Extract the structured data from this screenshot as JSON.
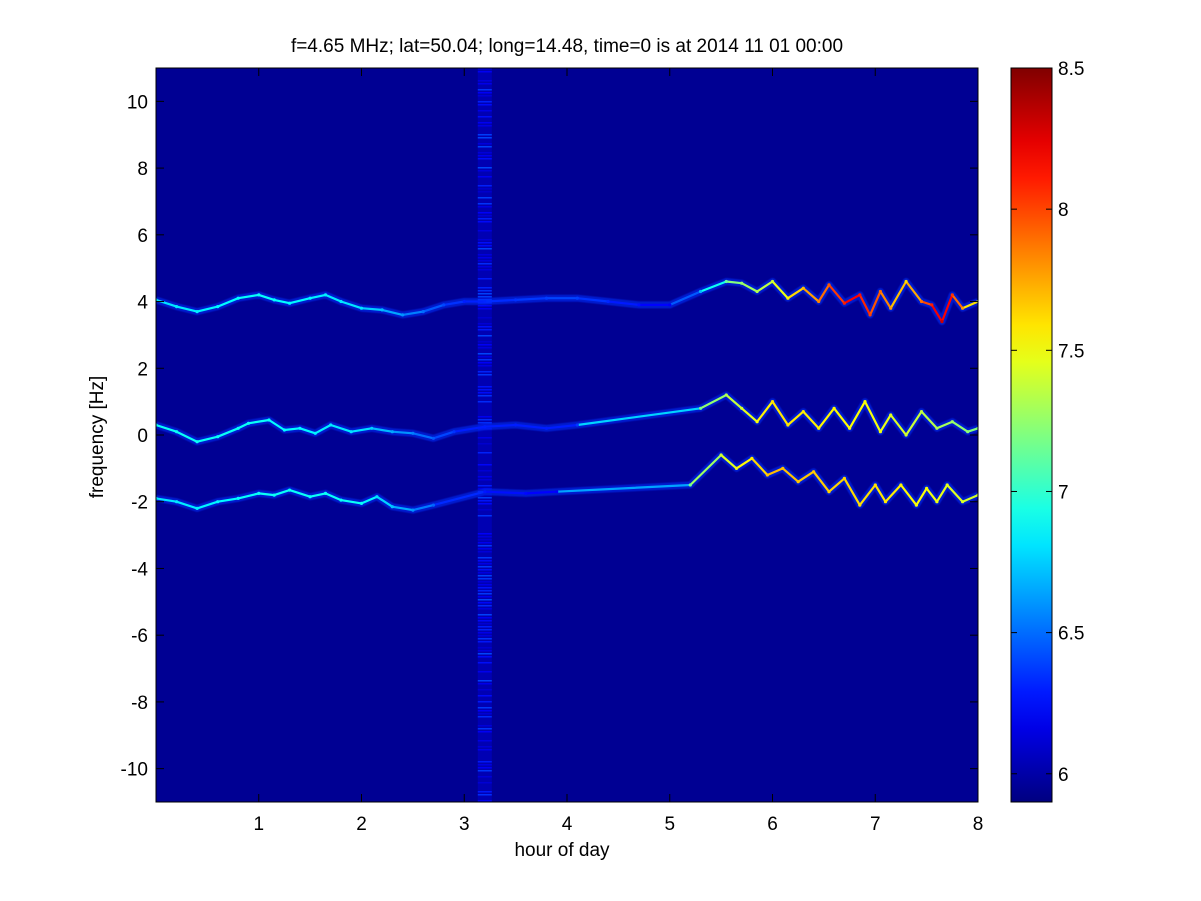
{
  "chart_data": {
    "type": "heatmap",
    "title": "f=4.65 MHz;  lat=50.04; long=14.48, time=0 is at 2014 11 01 00:00",
    "xlabel": "hour of day",
    "ylabel": "frequency [Hz]",
    "xlim": [
      0,
      8
    ],
    "ylim": [
      -11,
      11
    ],
    "x_ticks": [
      1,
      2,
      3,
      4,
      5,
      6,
      7,
      8
    ],
    "y_ticks": [
      -10,
      -8,
      -6,
      -4,
      -2,
      0,
      2,
      4,
      6,
      8,
      10
    ],
    "x_tick_labels": [
      "1",
      "2",
      "3",
      "4",
      "5",
      "6",
      "7",
      "8"
    ],
    "y_tick_labels": [
      "-10",
      "-8",
      "-6",
      "-4",
      "-2",
      "0",
      "2",
      "4",
      "6",
      "8",
      "10"
    ],
    "colorbar": {
      "min": 5.9,
      "max": 8.5,
      "ticks": [
        6,
        6.5,
        7,
        7.5,
        8,
        8.5
      ],
      "tick_labels": [
        "6",
        "6.5",
        "7",
        "7.5",
        "8",
        "8.5"
      ],
      "colormap": "jet"
    },
    "background_level": 5.95,
    "grid": false,
    "traces": [
      {
        "name": "",
        "points": [
          [
            0.0,
            4.05
          ],
          [
            0.2,
            3.85
          ],
          [
            0.4,
            3.7
          ],
          [
            0.6,
            3.85
          ],
          [
            0.8,
            4.1
          ],
          [
            1.0,
            4.2
          ],
          [
            1.15,
            4.05
          ],
          [
            1.3,
            3.95
          ],
          [
            1.5,
            4.1
          ],
          [
            1.65,
            4.2
          ],
          [
            1.8,
            4.0
          ],
          [
            2.0,
            3.8
          ],
          [
            2.2,
            3.75
          ],
          [
            2.4,
            3.6
          ],
          [
            2.6,
            3.7
          ],
          [
            2.8,
            3.9
          ],
          [
            3.0,
            4.0
          ],
          [
            3.2,
            4.0
          ],
          [
            3.5,
            4.05
          ],
          [
            3.8,
            4.1
          ],
          [
            4.1,
            4.1
          ],
          [
            4.4,
            4.0
          ],
          [
            4.7,
            3.9
          ],
          [
            5.0,
            3.9
          ],
          [
            5.3,
            4.3
          ],
          [
            5.55,
            4.6
          ],
          [
            5.7,
            4.55
          ],
          [
            5.85,
            4.3
          ],
          [
            6.0,
            4.6
          ],
          [
            6.15,
            4.1
          ],
          [
            6.3,
            4.4
          ],
          [
            6.45,
            4.0
          ],
          [
            6.55,
            4.5
          ],
          [
            6.7,
            3.95
          ],
          [
            6.85,
            4.2
          ],
          [
            6.95,
            3.6
          ],
          [
            7.05,
            4.3
          ],
          [
            7.15,
            3.8
          ],
          [
            7.3,
            4.6
          ],
          [
            7.45,
            4.0
          ],
          [
            7.55,
            3.9
          ],
          [
            7.65,
            3.4
          ],
          [
            7.75,
            4.2
          ],
          [
            7.85,
            3.8
          ],
          [
            8.0,
            4.0
          ]
        ],
        "levels": [
          [
            0.0,
            6.8
          ],
          [
            1.0,
            6.9
          ],
          [
            2.0,
            6.8
          ],
          [
            3.0,
            6.3
          ],
          [
            4.0,
            6.4
          ],
          [
            5.0,
            6.2
          ],
          [
            5.6,
            7.2
          ],
          [
            6.0,
            7.4
          ],
          [
            6.8,
            8.2
          ],
          [
            7.3,
            7.6
          ],
          [
            7.65,
            8.3
          ],
          [
            8.0,
            7.4
          ]
        ]
      },
      {
        "name": "",
        "points": [
          [
            0.0,
            0.3
          ],
          [
            0.2,
            0.1
          ],
          [
            0.4,
            -0.2
          ],
          [
            0.6,
            -0.05
          ],
          [
            0.8,
            0.2
          ],
          [
            0.9,
            0.35
          ],
          [
            1.1,
            0.45
          ],
          [
            1.25,
            0.15
          ],
          [
            1.4,
            0.2
          ],
          [
            1.55,
            0.05
          ],
          [
            1.7,
            0.3
          ],
          [
            1.9,
            0.1
          ],
          [
            2.1,
            0.2
          ],
          [
            2.3,
            0.1
          ],
          [
            2.5,
            0.05
          ],
          [
            2.7,
            -0.1
          ],
          [
            2.9,
            0.1
          ],
          [
            3.2,
            0.25
          ],
          [
            3.5,
            0.3
          ],
          [
            3.8,
            0.2
          ],
          [
            4.1,
            0.3
          ],
          [
            5.3,
            0.8
          ],
          [
            5.55,
            1.2
          ],
          [
            5.7,
            0.8
          ],
          [
            5.85,
            0.4
          ],
          [
            6.0,
            1.0
          ],
          [
            6.15,
            0.3
          ],
          [
            6.3,
            0.7
          ],
          [
            6.45,
            0.2
          ],
          [
            6.6,
            0.8
          ],
          [
            6.75,
            0.2
          ],
          [
            6.9,
            1.0
          ],
          [
            7.05,
            0.1
          ],
          [
            7.15,
            0.6
          ],
          [
            7.3,
            0.0
          ],
          [
            7.45,
            0.7
          ],
          [
            7.6,
            0.2
          ],
          [
            7.75,
            0.4
          ],
          [
            7.9,
            0.1
          ],
          [
            8.0,
            0.2
          ]
        ],
        "levels": [
          [
            0.0,
            6.9
          ],
          [
            1.0,
            6.9
          ],
          [
            2.0,
            6.8
          ],
          [
            3.0,
            6.3
          ],
          [
            4.0,
            6.3
          ],
          [
            5.5,
            7.3
          ],
          [
            6.0,
            7.6
          ],
          [
            7.0,
            7.5
          ],
          [
            8.0,
            7.2
          ]
        ]
      },
      {
        "name": "",
        "points": [
          [
            0.0,
            -1.9
          ],
          [
            0.2,
            -2.0
          ],
          [
            0.4,
            -2.2
          ],
          [
            0.6,
            -2.0
          ],
          [
            0.8,
            -1.9
          ],
          [
            1.0,
            -1.75
          ],
          [
            1.15,
            -1.8
          ],
          [
            1.3,
            -1.65
          ],
          [
            1.5,
            -1.85
          ],
          [
            1.65,
            -1.75
          ],
          [
            1.8,
            -1.95
          ],
          [
            2.0,
            -2.05
          ],
          [
            2.15,
            -1.85
          ],
          [
            2.3,
            -2.15
          ],
          [
            2.5,
            -2.25
          ],
          [
            2.7,
            -2.1
          ],
          [
            3.2,
            -1.7
          ],
          [
            3.6,
            -1.75
          ],
          [
            3.9,
            -1.7
          ],
          [
            5.2,
            -1.5
          ],
          [
            5.5,
            -0.6
          ],
          [
            5.65,
            -1.0
          ],
          [
            5.8,
            -0.7
          ],
          [
            5.95,
            -1.2
          ],
          [
            6.1,
            -1.0
          ],
          [
            6.25,
            -1.4
          ],
          [
            6.4,
            -1.1
          ],
          [
            6.55,
            -1.7
          ],
          [
            6.7,
            -1.3
          ],
          [
            6.85,
            -2.1
          ],
          [
            7.0,
            -1.5
          ],
          [
            7.1,
            -2.0
          ],
          [
            7.25,
            -1.5
          ],
          [
            7.4,
            -2.1
          ],
          [
            7.5,
            -1.6
          ],
          [
            7.6,
            -2.0
          ],
          [
            7.7,
            -1.5
          ],
          [
            7.85,
            -2.0
          ],
          [
            8.0,
            -1.8
          ]
        ],
        "levels": [
          [
            0.0,
            6.8
          ],
          [
            1.0,
            6.9
          ],
          [
            2.0,
            6.9
          ],
          [
            3.0,
            6.3
          ],
          [
            4.0,
            6.2
          ],
          [
            5.5,
            7.4
          ],
          [
            6.0,
            7.7
          ],
          [
            7.0,
            7.6
          ],
          [
            8.0,
            7.4
          ]
        ]
      }
    ],
    "noise_column": {
      "x": 3.2,
      "level": 6.1
    }
  }
}
